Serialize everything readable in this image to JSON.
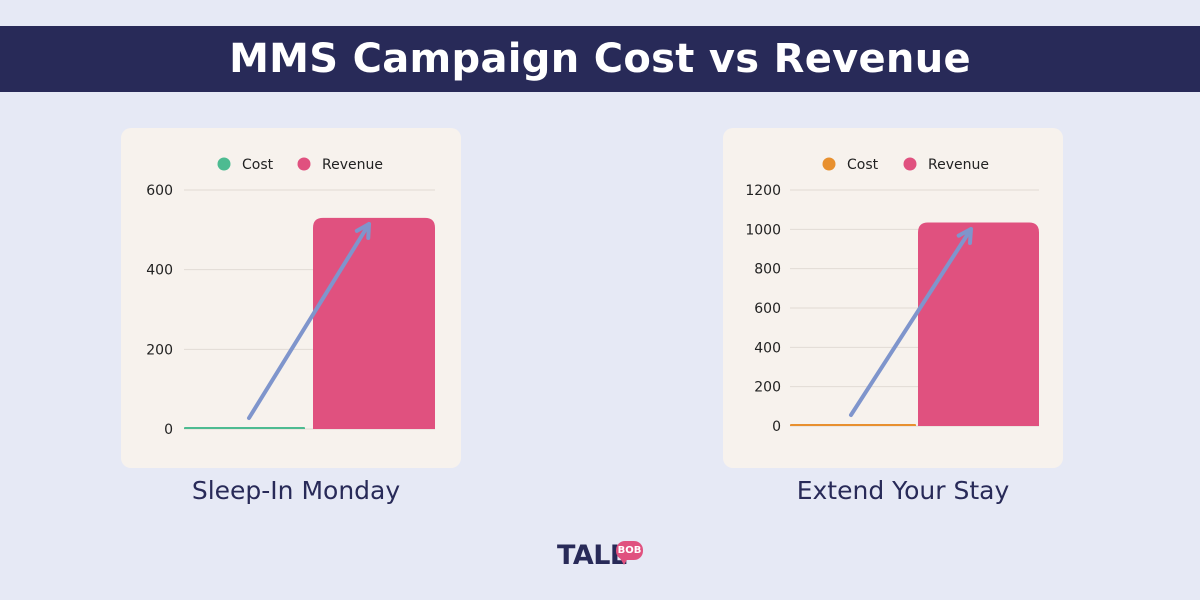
{
  "header": {
    "title": "MMS Campaign Cost vs Revenue"
  },
  "chart_data": [
    {
      "type": "bar",
      "title": "Sleep-In Monday",
      "categories": [
        "Cost",
        "Revenue"
      ],
      "series": [
        {
          "name": "Cost",
          "values": [
            3,
            null
          ],
          "color": "#4dbb91"
        },
        {
          "name": "Revenue",
          "values": [
            null,
            530
          ],
          "color": "#e0517f"
        }
      ],
      "ylim": [
        0,
        600
      ],
      "yticks": [
        0,
        200,
        400,
        600
      ],
      "grid": true,
      "legend": "top-center",
      "annotation": "upward-trend-arrow"
    },
    {
      "type": "bar",
      "title": "Extend Your Stay",
      "categories": [
        "Cost",
        "Revenue"
      ],
      "series": [
        {
          "name": "Cost",
          "values": [
            3,
            null
          ],
          "color": "#e8902f"
        },
        {
          "name": "Revenue",
          "values": [
            null,
            1035
          ],
          "color": "#e0517f"
        }
      ],
      "ylim": [
        0,
        1200
      ],
      "yticks": [
        0,
        200,
        400,
        600,
        800,
        1000,
        1200
      ],
      "grid": true,
      "legend": "top-center",
      "annotation": "upward-trend-arrow"
    }
  ],
  "colors": {
    "arrow": "#7f95cc",
    "grid": "#e2dbd4",
    "text": "#282a58"
  },
  "logo": {
    "word": "TALL",
    "badge": "BOB"
  }
}
